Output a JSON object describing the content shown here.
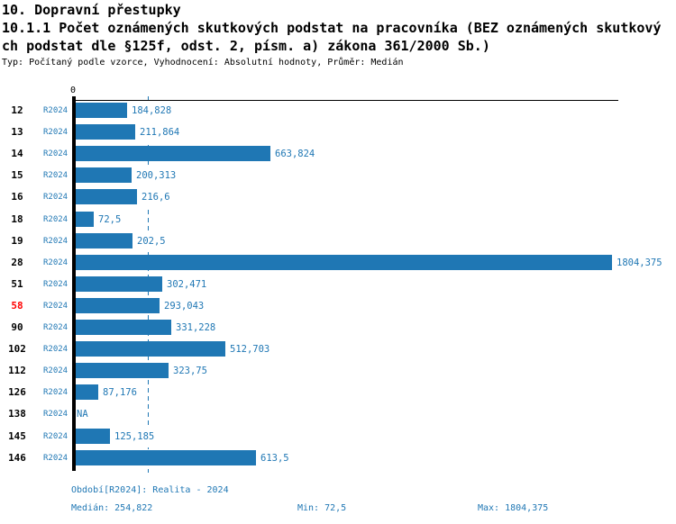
{
  "header": {
    "section_title": "10. Dopravní přestupky",
    "title_line1": "10.1.1 Počet oznámených skutkových podstat na pracovníka (BEZ oznámených skutkový",
    "title_line2": "ch podstat dle §125f, odst. 2, písm. a) zákona 361/2000 Sb.)",
    "subtitle": "Typ: Počítaný podle vzorce, Vyhodnocení: Absolutní hodnoty, Průměr: Medián"
  },
  "chart_data": {
    "type": "bar",
    "orientation": "horizontal",
    "title": "10.1.1 Počet oznámených skutkových podstat na pracovníka (BEZ oznámených skutkových podstat dle §125f, odst. 2, písm. a) zákona 361/2000 Sb.)",
    "series_name": "R2024",
    "x_axis_ticks": [
      "0"
    ],
    "xlim": [
      0,
      1804.375
    ],
    "median_line_value": 254.822,
    "grid": "median-dashed-line-only",
    "legend_position": "none",
    "categories": [
      "12",
      "13",
      "14",
      "15",
      "16",
      "18",
      "19",
      "28",
      "51",
      "58",
      "90",
      "102",
      "112",
      "126",
      "138",
      "145",
      "146"
    ],
    "rows": [
      {
        "category": "12",
        "period": "R2024",
        "value": 184.828,
        "value_label": "184,828",
        "highlighted": false
      },
      {
        "category": "13",
        "period": "R2024",
        "value": 211.864,
        "value_label": "211,864",
        "highlighted": false
      },
      {
        "category": "14",
        "period": "R2024",
        "value": 663.824,
        "value_label": "663,824",
        "highlighted": false
      },
      {
        "category": "15",
        "period": "R2024",
        "value": 200.313,
        "value_label": "200,313",
        "highlighted": false
      },
      {
        "category": "16",
        "period": "R2024",
        "value": 216.6,
        "value_label": "216,6",
        "highlighted": false
      },
      {
        "category": "18",
        "period": "R2024",
        "value": 72.5,
        "value_label": "72,5",
        "highlighted": false
      },
      {
        "category": "19",
        "period": "R2024",
        "value": 202.5,
        "value_label": "202,5",
        "highlighted": false
      },
      {
        "category": "28",
        "period": "R2024",
        "value": 1804.375,
        "value_label": "1804,375",
        "highlighted": false
      },
      {
        "category": "51",
        "period": "R2024",
        "value": 302.471,
        "value_label": "302,471",
        "highlighted": false
      },
      {
        "category": "58",
        "period": "R2024",
        "value": 293.043,
        "value_label": "293,043",
        "highlighted": true
      },
      {
        "category": "90",
        "period": "R2024",
        "value": 331.228,
        "value_label": "331,228",
        "highlighted": false
      },
      {
        "category": "102",
        "period": "R2024",
        "value": 512.703,
        "value_label": "512,703",
        "highlighted": false
      },
      {
        "category": "112",
        "period": "R2024",
        "value": 323.75,
        "value_label": "323,75",
        "highlighted": false
      },
      {
        "category": "126",
        "period": "R2024",
        "value": 87.176,
        "value_label": "87,176",
        "highlighted": false
      },
      {
        "category": "138",
        "period": "R2024",
        "value": null,
        "value_label": "NA",
        "highlighted": false
      },
      {
        "category": "145",
        "period": "R2024",
        "value": 125.185,
        "value_label": "125,185",
        "highlighted": false
      },
      {
        "category": "146",
        "period": "R2024",
        "value": 613.5,
        "value_label": "613,5",
        "highlighted": false
      }
    ],
    "stats": {
      "median": 254.822,
      "min": 72.5,
      "max": 1804.375
    },
    "colors": {
      "bar": "#1f77b4",
      "blue_text": "#1f77b4",
      "highlight_red": "#ff0000",
      "axis": "#000000"
    }
  },
  "footer": {
    "period_line": "Období[R2024]: Realita - 2024",
    "median": "Medián: 254,822",
    "min": "Min: 72,5",
    "max": "Max: 1804,375"
  }
}
